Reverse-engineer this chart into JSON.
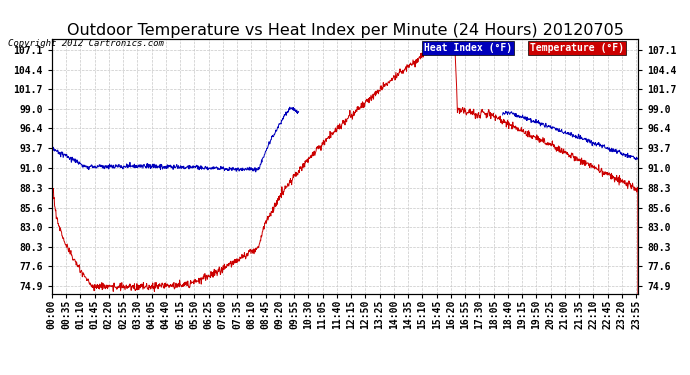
{
  "title": "Outdoor Temperature vs Heat Index per Minute (24 Hours) 20120705",
  "copyright": "Copyright 2012 Cartronics.com",
  "legend_heat": "Heat Index (°F)",
  "legend_temp": "Temperature (°F)",
  "yticks": [
    74.9,
    77.6,
    80.3,
    83.0,
    85.6,
    88.3,
    91.0,
    93.7,
    96.4,
    99.0,
    101.7,
    104.4,
    107.1
  ],
  "ymin": 73.8,
  "ymax": 108.5,
  "bg_color": "#ffffff",
  "plot_bg_color": "#ffffff",
  "grid_color": "#c8c8c8",
  "heat_color": "#0000bb",
  "temp_color": "#cc0000",
  "title_fontsize": 11.5,
  "tick_fontsize": 7,
  "n_minutes": 1441,
  "tick_every": 35
}
